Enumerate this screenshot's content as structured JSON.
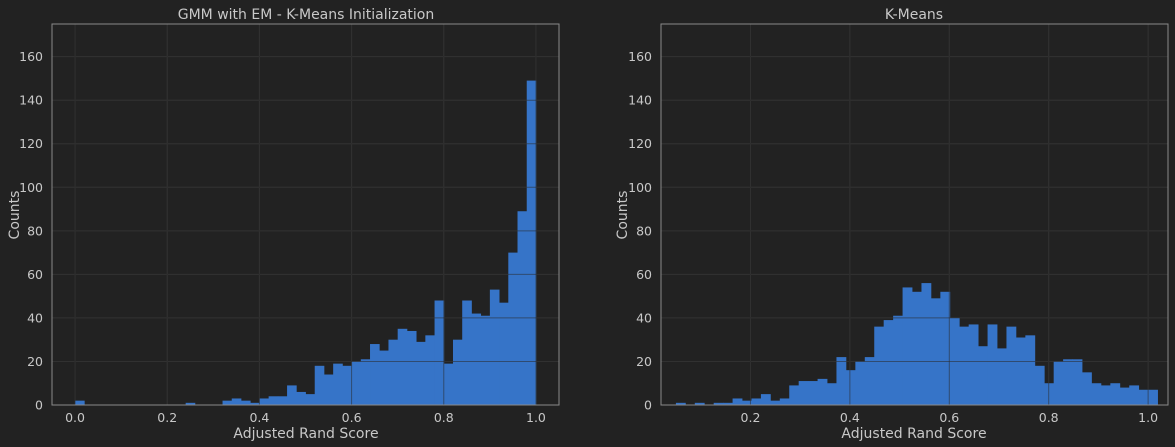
{
  "chart_data": [
    {
      "type": "bar",
      "title": "GMM with EM - K-Means Initialization",
      "xlabel": "Adjusted Rand Score",
      "ylabel": "Counts",
      "xlim": [
        -0.05,
        1.05
      ],
      "ylim": [
        0,
        175
      ],
      "xticks": [
        "0.0",
        "0.2",
        "0.4",
        "0.6",
        "0.8",
        "1.0"
      ],
      "yticks": [
        "0",
        "20",
        "40",
        "60",
        "80",
        "100",
        "120",
        "140",
        "160"
      ],
      "grid": true,
      "bin_start": 0.0,
      "bin_width": 0.02,
      "values": [
        2,
        0,
        0,
        0,
        0,
        0,
        0,
        0,
        0,
        0,
        0,
        0,
        1,
        0,
        0,
        0,
        2,
        3,
        2,
        1,
        3,
        4,
        4,
        9,
        6,
        5,
        18,
        14,
        19,
        18,
        20,
        21,
        28,
        25,
        30,
        35,
        34,
        29,
        32,
        48,
        19,
        30,
        48,
        42,
        41,
        53,
        47,
        70,
        89,
        149
      ],
      "color": "#3674c8"
    },
    {
      "type": "bar",
      "title": "K-Means",
      "xlabel": "Adjusted Rand Score",
      "ylabel": "Counts",
      "xlim": [
        0.02,
        1.04
      ],
      "ylim": [
        0,
        175
      ],
      "xticks": [
        "0.2",
        "0.4",
        "0.6",
        "0.8",
        "1.0"
      ],
      "yticks": [
        "0",
        "20",
        "40",
        "60",
        "80",
        "100",
        "120",
        "140",
        "160"
      ],
      "grid": true,
      "bin_start": 0.05,
      "bin_width": 0.019,
      "values": [
        1,
        0,
        1,
        0,
        1,
        1,
        3,
        2,
        3,
        5,
        2,
        3,
        9,
        11,
        11,
        12,
        10,
        22,
        16,
        20,
        22,
        36,
        39,
        41,
        54,
        52,
        56,
        49,
        52,
        40,
        36,
        37,
        27,
        37,
        26,
        36,
        31,
        32,
        18,
        10,
        20,
        21,
        21,
        15,
        10,
        9,
        10,
        8,
        9,
        7,
        7
      ],
      "color": "#3674c8"
    }
  ],
  "colors": {
    "background": "#222222",
    "grid": "#3a3a3a",
    "axes_edge": "#8a8a8a",
    "text": "#c8c8c8",
    "bar": "#3674c8"
  }
}
